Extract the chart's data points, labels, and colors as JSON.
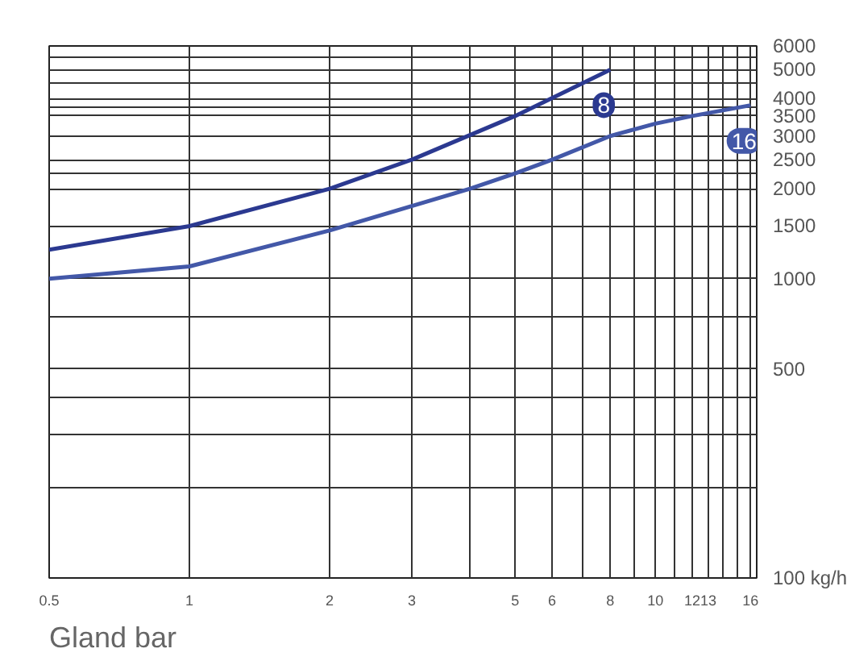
{
  "chart_data": {
    "type": "line",
    "xlabel": "Gland bar",
    "log": "xy",
    "grid": true,
    "marker": "none",
    "xlim": [
      0.5,
      16.5
    ],
    "ylim": [
      100,
      6000
    ],
    "xticks": [
      0.5,
      1,
      2,
      3,
      {
        "value": 4,
        "label": null
      },
      5,
      6,
      {
        "value": 7,
        "label": null
      },
      8,
      {
        "value": 9,
        "label": null
      },
      10,
      {
        "value": 11,
        "label": null
      },
      12,
      13,
      {
        "value": 14,
        "label": null
      },
      {
        "value": 15,
        "label": null
      },
      16
    ],
    "yticks": [
      {
        "value": 100,
        "label": "100 kg/h"
      },
      {
        "value": 200,
        "label": null
      },
      {
        "value": 300,
        "label": null
      },
      {
        "value": 400,
        "label": null
      },
      500,
      {
        "value": 750,
        "label": null
      },
      1000,
      1500,
      2000,
      {
        "value": 2250,
        "label": null
      },
      2500,
      3000,
      3500,
      {
        "value": 3750,
        "label": null
      },
      4000,
      {
        "value": 4500,
        "label": null
      },
      5000,
      {
        "value": 5500,
        "label": null
      },
      6000
    ],
    "series": [
      {
        "name": "8",
        "color": "#2b3990",
        "x": [
          0.5,
          1,
          2,
          3,
          5,
          8
        ],
        "values": [
          1250,
          1500,
          2000,
          2500,
          3500,
          5000
        ]
      },
      {
        "name": "16",
        "color": "#4358a8",
        "x": [
          0.5,
          1,
          2,
          3,
          4,
          5,
          6,
          8,
          10,
          12,
          16
        ],
        "values": [
          1000,
          1100,
          1450,
          1750,
          2000,
          2250,
          2500,
          3000,
          3300,
          3500,
          3800
        ]
      }
    ]
  }
}
